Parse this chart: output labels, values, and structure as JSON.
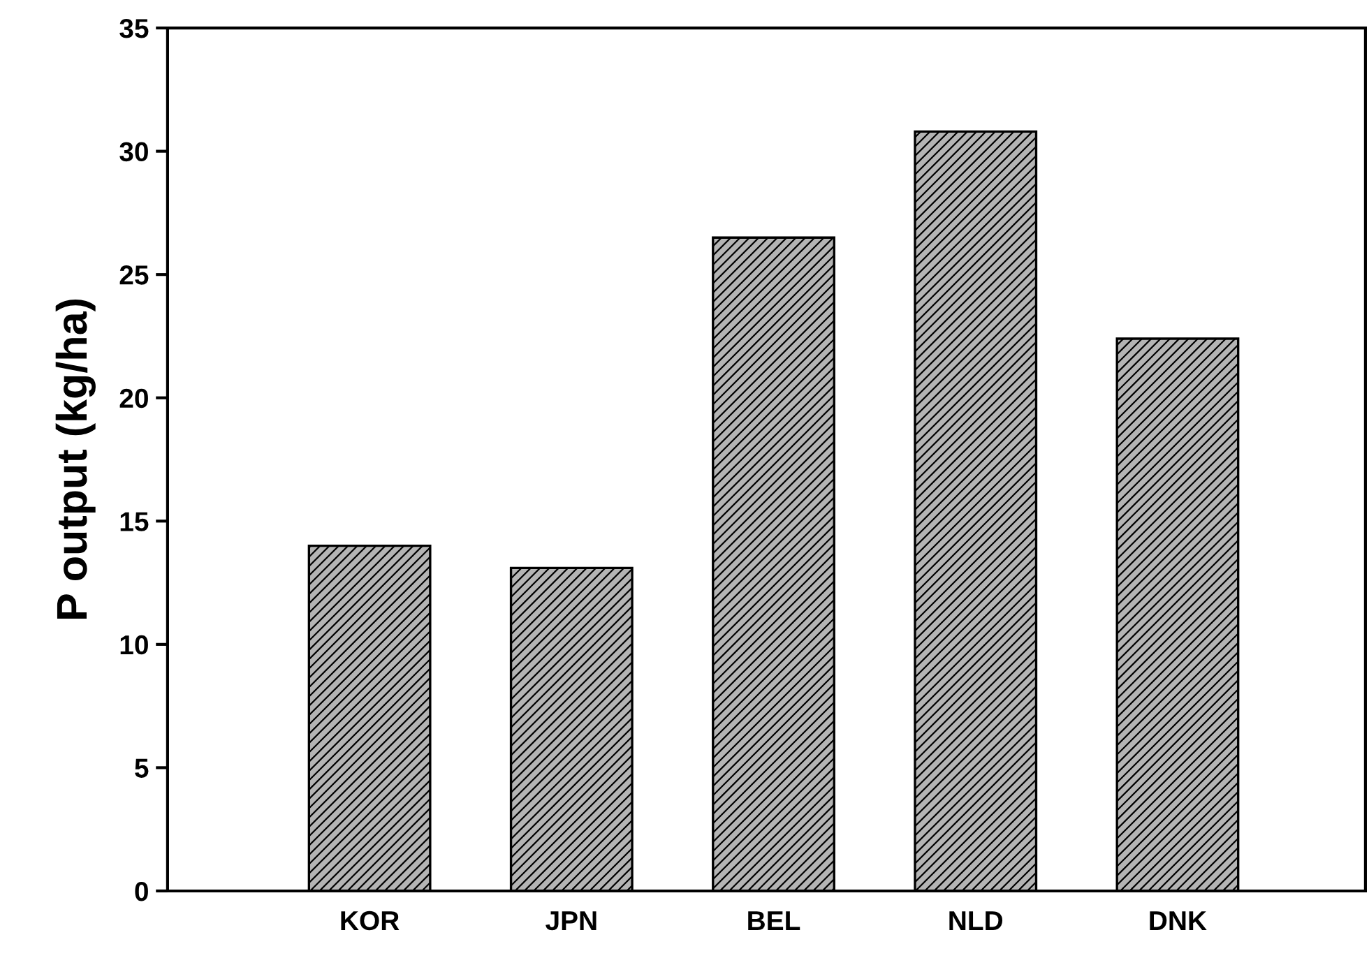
{
  "chart_data": {
    "type": "bar",
    "ylabel": "P output (kg/ha)",
    "categories": [
      "KOR",
      "JPN",
      "BEL",
      "NLD",
      "DNK"
    ],
    "values": [
      14.0,
      13.1,
      26.5,
      30.8,
      22.4
    ],
    "color": "#b4b4b4",
    "ylim": [
      0,
      35
    ],
    "yticks": [
      0,
      5,
      10,
      15,
      20,
      25,
      30,
      35
    ],
    "grid": false,
    "legend": false
  }
}
